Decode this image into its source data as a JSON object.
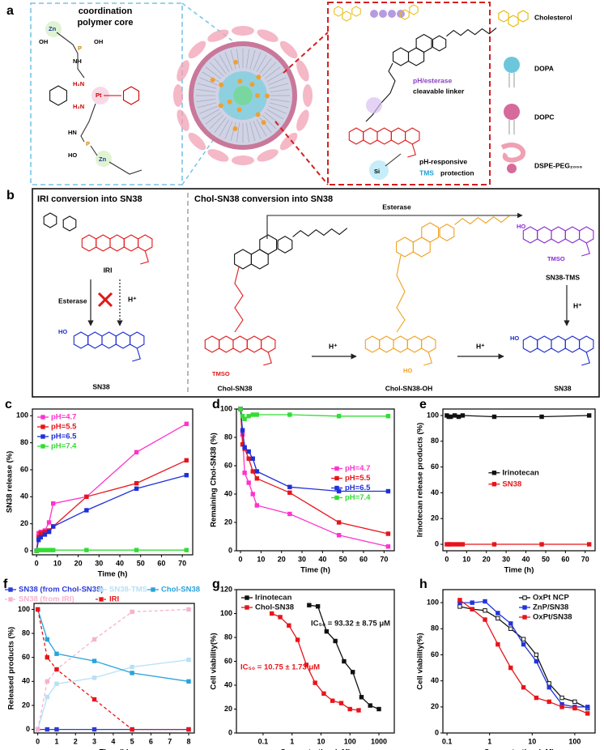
{
  "panel_a": {
    "label": "a",
    "core_title": [
      "coordination",
      "polymer core"
    ],
    "atoms": {
      "zn_top": "Zn",
      "oh_zn": "OH",
      "p_top": "P",
      "oh_p": "OH",
      "nh": "NH",
      "amine_top": "H₂N",
      "pt": "Pt",
      "amine_bottom": "H₂N",
      "hn": "HN",
      "p_bottom": "P",
      "ho_p": "HO",
      "zn_bottom": "Zn"
    },
    "linker": [
      "pH/esterase",
      "cleavable linker"
    ],
    "protection": [
      "pH-responsive",
      "TMS",
      "protection"
    ],
    "si": "Si",
    "legend": [
      "Cholesterol",
      "DOPA",
      "DOPC",
      "DSPE-PEG₂₀₀₀"
    ]
  },
  "panel_b": {
    "label": "b",
    "left_title": "IRI conversion into SN38",
    "right_title": "Chol-SN38 conversion into SN38",
    "esterase_left": "Esterase",
    "h_left": "H⁺",
    "esterase_top": "Esterase",
    "h_mid1": "H⁺",
    "h_mid2": "H⁺",
    "h_right": "H⁺",
    "compounds": [
      "IRI",
      "SN38",
      "Chol-SN38",
      "Chol-SN38-OH",
      "SN38-TMS",
      "SN38"
    ],
    "groups": {
      "ho_left": "HO",
      "tmso_chol": "TMSO",
      "ho_chol_oh": "HO",
      "ho_tms": "HO",
      "tmso_tms": "TMSO",
      "ho_sn38": "HO"
    }
  },
  "chart_data": [
    {
      "type": "line",
      "panel": "c",
      "xlabel": "Time (h)",
      "ylabel": "SN38 release (%)",
      "x": [
        0,
        1,
        2,
        4,
        6,
        8,
        24,
        48,
        72
      ],
      "xlim": [
        -2,
        75
      ],
      "xticks": [
        0,
        10,
        20,
        30,
        40,
        50,
        60,
        70
      ],
      "ylim": [
        -3,
        105
      ],
      "yticks": [
        0,
        20,
        40,
        60,
        80,
        100
      ],
      "legend": "upper left",
      "legend_text_colored": true,
      "series": [
        {
          "name": "pH=4.7",
          "color": "#ff33cc",
          "values": [
            0,
            13,
            14,
            15,
            21,
            35,
            40,
            73,
            94
          ]
        },
        {
          "name": "pH=5.5",
          "color": "#e8141b",
          "values": [
            0,
            10,
            13,
            14,
            15,
            18,
            40,
            50,
            67
          ]
        },
        {
          "name": "pH=6.5",
          "color": "#1f2fd8",
          "values": [
            0,
            8,
            10,
            12,
            14,
            18,
            30,
            46,
            56
          ]
        },
        {
          "name": "pH=7.4",
          "color": "#33dd33",
          "values": [
            0,
            0.5,
            0.5,
            0.5,
            0.5,
            0.5,
            0.5,
            0.5,
            0.5
          ]
        }
      ]
    },
    {
      "type": "line",
      "panel": "d",
      "xlabel": "Time (h)",
      "ylabel": "Remaining Chol-SN38 (%)",
      "x": [
        0,
        1,
        2,
        4,
        6,
        8,
        24,
        48,
        72
      ],
      "xlim": [
        -2,
        75
      ],
      "xticks": [
        0,
        10,
        20,
        30,
        40,
        50,
        60,
        70
      ],
      "ylim": [
        0,
        100
      ],
      "yticks": [
        0,
        20,
        40,
        60,
        80,
        100
      ],
      "legend": "center right",
      "legend_text_colored": true,
      "series": [
        {
          "name": "pH=4.7",
          "color": "#ff33cc",
          "values": [
            100,
            82,
            55,
            48,
            40,
            32,
            26,
            11,
            3
          ]
        },
        {
          "name": "pH=5.5",
          "color": "#e8141b",
          "values": [
            100,
            75,
            72,
            65,
            56,
            51,
            41,
            20,
            12
          ]
        },
        {
          "name": "pH=6.5",
          "color": "#1f2fd8",
          "values": [
            100,
            85,
            73,
            70,
            65,
            56,
            45,
            42,
            42
          ]
        },
        {
          "name": "pH=7.4",
          "color": "#33dd33",
          "values": [
            100,
            95,
            93,
            95,
            96,
            96,
            96,
            95,
            95
          ]
        }
      ]
    },
    {
      "type": "line",
      "panel": "e",
      "xlabel": "Time (h)",
      "ylabel": "Irinotecan release products (%)",
      "x": [
        0,
        1,
        2,
        4,
        6,
        8,
        24,
        48,
        72
      ],
      "xlim": [
        -2,
        75
      ],
      "xticks": [
        0,
        10,
        20,
        30,
        40,
        50,
        60,
        70
      ],
      "ylim": [
        -5,
        105
      ],
      "yticks": [
        0,
        20,
        40,
        60,
        80,
        100
      ],
      "legend": "center",
      "legend_text_colored": true,
      "series": [
        {
          "name": "Irinotecan",
          "color": "#111111",
          "values": [
            100,
            99,
            99,
            100,
            99,
            100,
            99,
            99,
            100
          ]
        },
        {
          "name": "SN38",
          "color": "#e8141b",
          "values": [
            0,
            0,
            0,
            0,
            0,
            0,
            0,
            0,
            0
          ]
        }
      ]
    },
    {
      "type": "line",
      "panel": "f",
      "xlabel": "Time (h)",
      "ylabel": "Released products (%)",
      "x": [
        0,
        0.5,
        1,
        3,
        5,
        8
      ],
      "xlim": [
        -0.2,
        8.3
      ],
      "xticks": [
        0,
        1,
        2,
        3,
        4,
        5,
        6,
        7,
        8
      ],
      "ylim": [
        -3,
        105
      ],
      "yticks": [
        0,
        20,
        40,
        60,
        80,
        100
      ],
      "legend": "top",
      "legend_text_colored": true,
      "series": [
        {
          "name": "SN38 (from Chol-SN38)",
          "color": "#2b3bd6",
          "values": [
            0,
            0,
            0,
            0,
            0,
            0
          ]
        },
        {
          "name": "SN38-TMS",
          "color": "#b7e0f5",
          "values": [
            0,
            27,
            38,
            43,
            52,
            58
          ]
        },
        {
          "name": "Chol-SN38",
          "color": "#29a3dc",
          "values": [
            100,
            75,
            63,
            57,
            47,
            40
          ]
        },
        {
          "name": "SN38 (from IRI)",
          "color": "#f5b3cf",
          "dashed": true,
          "values": [
            0,
            40,
            50,
            75,
            98,
            100
          ]
        },
        {
          "name": "IRI",
          "color": "#e8141b",
          "dashed": true,
          "values": [
            100,
            60,
            50,
            25,
            0,
            0
          ]
        }
      ]
    },
    {
      "type": "line",
      "panel": "g",
      "xlabel": "Concentration (μM)",
      "ylabel": "Cell viability(%)",
      "xlog": true,
      "xlim": [
        0.012,
        3400
      ],
      "xticks": [
        0.1,
        1,
        10,
        100,
        1000
      ],
      "ylim": [
        0,
        120
      ],
      "yticks": [
        0,
        20,
        40,
        60,
        80,
        100,
        120
      ],
      "legend": "upper left",
      "annotations": [
        {
          "text": "IC₅₀ = 93.32 ± 8.75 μM",
          "color": "#111111"
        },
        {
          "text": "IC₅₀ = 10.75 ± 1.73 μM",
          "color": "#e8141b"
        }
      ],
      "series": [
        {
          "name": "Irinotecan",
          "color": "#111111",
          "x": [
            3.9,
            7.8,
            15.6,
            31.25,
            62.5,
            125,
            250,
            500,
            1000
          ],
          "values": [
            107,
            106,
            85,
            77,
            60,
            51,
            30,
            23,
            20
          ]
        },
        {
          "name": "Chol-SN38",
          "color": "#e8141b",
          "x": [
            0.2,
            0.39,
            0.78,
            1.56,
            3.13,
            6.25,
            12.5,
            25,
            50,
            100,
            200
          ],
          "values": [
            100,
            97,
            90,
            78,
            57,
            42,
            33,
            27,
            25,
            20,
            19
          ]
        }
      ]
    },
    {
      "type": "line",
      "panel": "h",
      "xlabel": "Concentration (μM)",
      "ylabel": "Cell viability(%)",
      "xlog": true,
      "xlim": [
        0.08,
        300
      ],
      "xticks": [
        0.1,
        1,
        10,
        100
      ],
      "ylim": [
        0,
        110
      ],
      "yticks": [
        0,
        20,
        40,
        60,
        80,
        100
      ],
      "legend": "upper right",
      "series": [
        {
          "name": "OxPt NCP",
          "color": "#111111",
          "marker": "open",
          "x": [
            0.2,
            0.39,
            0.78,
            1.56,
            3.13,
            6.25,
            12.5,
            25,
            50,
            100,
            200
          ],
          "values": [
            97,
            95,
            94,
            88,
            80,
            72,
            60,
            38,
            27,
            24,
            19
          ]
        },
        {
          "name": "ZnP/SN38",
          "color": "#2233dd",
          "x": [
            0.2,
            0.39,
            0.78,
            1.56,
            3.13,
            6.25,
            12.5,
            25,
            50,
            100,
            200
          ],
          "values": [
            100,
            100,
            101,
            92,
            84,
            68,
            55,
            35,
            22,
            20,
            20
          ]
        },
        {
          "name": "OxPt/SN38",
          "color": "#e8141b",
          "x": [
            0.2,
            0.39,
            0.78,
            1.56,
            3.13,
            6.25,
            12.5,
            25,
            50,
            100,
            200
          ],
          "values": [
            102,
            95,
            87,
            68,
            50,
            35,
            27,
            24,
            20,
            19,
            15
          ]
        }
      ]
    }
  ]
}
